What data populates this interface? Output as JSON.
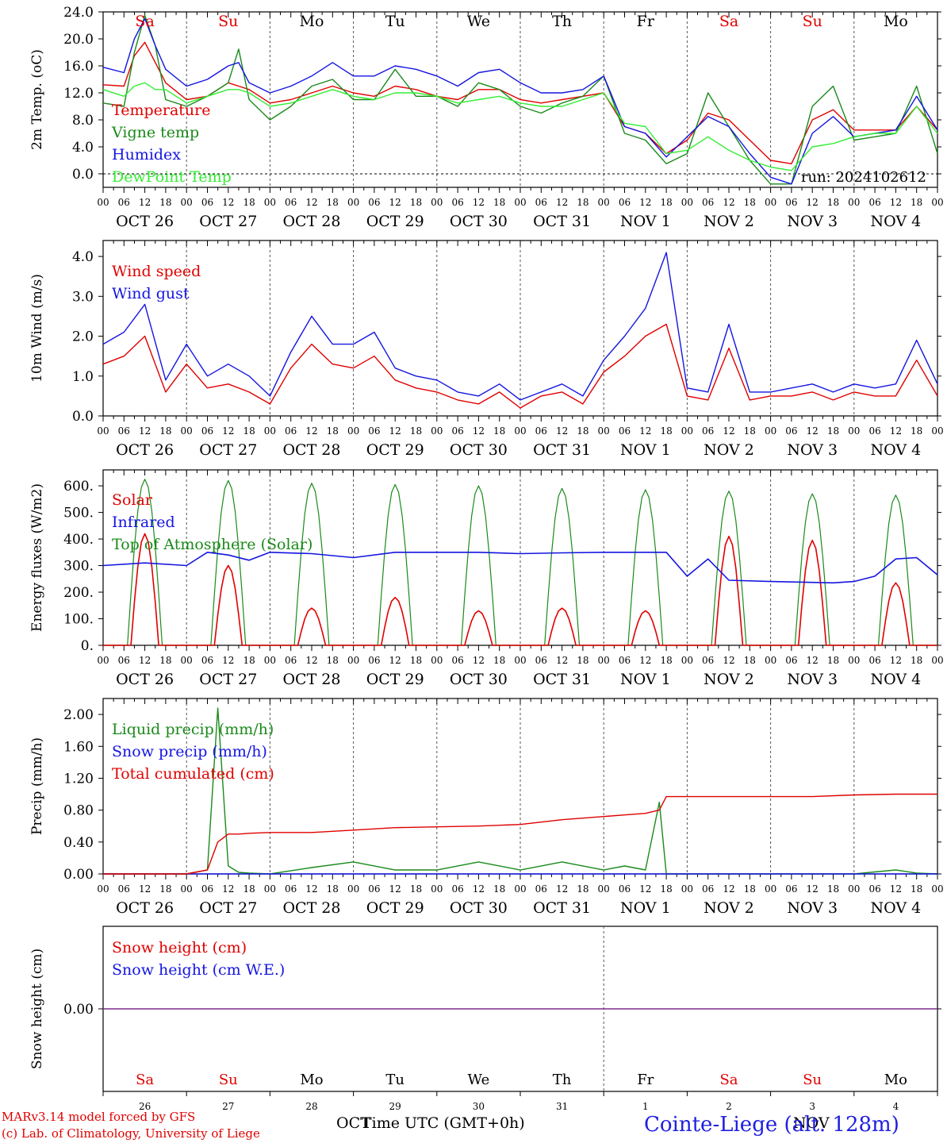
{
  "footer": {
    "model": "MARv3.14 model forced by GFS",
    "lab": "(c) Lab. of Climatology, University of Liege",
    "xlabel": "Time UTC (GMT+0h)",
    "station": "Cointe-Liege (alt. 128m)",
    "oct": "OCT",
    "nov": "NOV"
  },
  "days": {
    "dow": [
      "Sa",
      "Su",
      "Mo",
      "Tu",
      "We",
      "Th",
      "Fr",
      "Sa",
      "Su",
      "Mo"
    ],
    "dow_colors": [
      "#e00000",
      "#e00000",
      "#000000",
      "#000000",
      "#000000",
      "#000000",
      "#000000",
      "#e00000",
      "#e00000",
      "#000000"
    ],
    "date_labels": [
      "OCT 26",
      "OCT 27",
      "OCT 28",
      "OCT 29",
      "OCT 30",
      "OCT 31",
      "NOV  1",
      "NOV  2",
      "NOV  3",
      "NOV  4"
    ],
    "day_numbers": [
      "26",
      "27",
      "28",
      "29",
      "30",
      "31",
      "1",
      "2",
      "3",
      "4"
    ],
    "hour_ticks": [
      "00",
      "06",
      "12",
      "18"
    ],
    "final_tick": "00"
  },
  "colors": {
    "red": "#e00000",
    "green": "#1a8a1a",
    "blue": "#1515e0",
    "lightgreen": "#33ee33",
    "purple": "#7b2d8b",
    "grid": "#555555"
  },
  "chart_data": [
    {
      "type": "line",
      "ylabel": "2m Temp. (oC)",
      "ylim": [
        -2.0,
        24.0
      ],
      "yticks": [
        "0.0",
        "4.0",
        "8.0",
        "12.0",
        "16.0",
        "20.0",
        "24.0"
      ],
      "yticks_values": [
        0,
        4,
        8,
        12,
        16,
        20,
        24
      ],
      "annotation": "run: 2024102612",
      "x_hours": [
        0,
        6,
        9,
        12,
        15,
        18,
        24,
        30,
        36,
        39,
        42,
        48,
        54,
        60,
        66,
        72,
        78,
        84,
        90,
        96,
        102,
        108,
        114,
        120,
        126,
        132,
        138,
        144,
        150,
        156,
        162,
        168,
        174,
        180,
        186,
        192,
        198,
        204,
        210,
        216,
        222,
        228,
        234,
        240
      ],
      "series": [
        {
          "name": "Temperature",
          "color": "red",
          "values": [
            13.2,
            13.0,
            17.5,
            19.5,
            16.5,
            13.5,
            11.0,
            11.5,
            13.5,
            13.0,
            12.5,
            10.5,
            11.0,
            12.0,
            13.0,
            12.0,
            11.5,
            13.0,
            12.5,
            11.5,
            11.0,
            12.5,
            12.5,
            11.0,
            10.5,
            11.0,
            11.5,
            12.0,
            7.0,
            6.0,
            3.0,
            5.0,
            9.0,
            8.0,
            5.0,
            2.0,
            1.5,
            8.0,
            9.5,
            6.5,
            6.5,
            6.5,
            10.0,
            6.5
          ]
        },
        {
          "name": "Vigne temp",
          "color": "green",
          "values": [
            10.5,
            10.0,
            18.0,
            23.5,
            19.0,
            11.0,
            10.0,
            11.5,
            13.5,
            18.5,
            11.0,
            8.0,
            10.0,
            13.0,
            14.0,
            11.0,
            11.0,
            15.5,
            11.5,
            11.5,
            10.0,
            13.5,
            12.5,
            10.0,
            9.0,
            10.5,
            11.5,
            14.5,
            6.0,
            5.0,
            1.5,
            3.0,
            12.0,
            7.0,
            2.0,
            -1.5,
            -1.5,
            10.0,
            13.0,
            5.0,
            5.5,
            6.0,
            13.0,
            3.0
          ]
        },
        {
          "name": "Humidex",
          "color": "blue",
          "values": [
            15.8,
            15.0,
            20.0,
            23.0,
            19.0,
            15.5,
            13.0,
            14.0,
            16.0,
            16.5,
            13.5,
            12.0,
            13.0,
            14.5,
            16.5,
            14.5,
            14.5,
            16.0,
            15.5,
            14.5,
            13.0,
            15.0,
            15.5,
            13.5,
            12.0,
            12.0,
            12.5,
            14.5,
            7.0,
            6.0,
            2.5,
            5.5,
            8.5,
            7.0,
            3.0,
            -0.5,
            -1.5,
            6.0,
            8.5,
            5.5,
            6.0,
            6.5,
            11.5,
            6.5
          ]
        },
        {
          "name": "DewPoint Temp",
          "color": "lightgreen",
          "values": [
            12.5,
            11.5,
            13.0,
            13.5,
            12.5,
            12.5,
            10.5,
            11.5,
            12.5,
            12.5,
            12.0,
            10.0,
            10.5,
            11.5,
            12.5,
            11.5,
            11.0,
            12.0,
            12.0,
            11.5,
            10.5,
            11.0,
            11.5,
            10.5,
            10.0,
            10.0,
            11.0,
            12.0,
            7.5,
            7.0,
            3.0,
            3.5,
            5.5,
            3.5,
            2.0,
            1.0,
            0.5,
            4.0,
            4.5,
            5.5,
            6.0,
            6.0,
            10.0,
            6.0
          ]
        }
      ]
    },
    {
      "type": "line",
      "ylabel": "10m Wind (m/s)",
      "ylim": [
        0.0,
        4.4
      ],
      "yticks": [
        "0.0",
        "1.0",
        "2.0",
        "3.0",
        "4.0"
      ],
      "yticks_values": [
        0,
        1,
        2,
        3,
        4
      ],
      "x_hours": [
        0,
        6,
        12,
        18,
        24,
        30,
        36,
        42,
        48,
        54,
        60,
        66,
        72,
        78,
        84,
        90,
        96,
        102,
        108,
        114,
        120,
        126,
        132,
        138,
        144,
        150,
        156,
        162,
        168,
        174,
        180,
        186,
        192,
        198,
        204,
        210,
        216,
        222,
        228,
        234,
        240
      ],
      "series": [
        {
          "name": "Wind speed",
          "color": "red",
          "values": [
            1.3,
            1.5,
            2.0,
            0.6,
            1.3,
            0.7,
            0.8,
            0.6,
            0.3,
            1.2,
            1.8,
            1.3,
            1.2,
            1.5,
            0.9,
            0.7,
            0.6,
            0.4,
            0.3,
            0.6,
            0.2,
            0.5,
            0.6,
            0.3,
            1.1,
            1.5,
            2.0,
            2.3,
            0.5,
            0.4,
            1.7,
            0.4,
            0.5,
            0.5,
            0.6,
            0.4,
            0.6,
            0.5,
            0.5,
            1.4,
            0.5
          ]
        },
        {
          "name": "Wind gust",
          "color": "blue",
          "values": [
            1.8,
            2.1,
            2.8,
            0.9,
            1.8,
            1.0,
            1.3,
            1.0,
            0.5,
            1.6,
            2.5,
            1.8,
            1.8,
            2.1,
            1.2,
            1.0,
            0.9,
            0.6,
            0.5,
            0.8,
            0.4,
            0.6,
            0.8,
            0.5,
            1.4,
            2.0,
            2.7,
            4.1,
            0.7,
            0.6,
            2.3,
            0.6,
            0.6,
            0.7,
            0.8,
            0.6,
            0.8,
            0.7,
            0.8,
            1.9,
            0.8
          ]
        }
      ]
    },
    {
      "type": "line",
      "ylabel": "Energy fluxes (W/m2)",
      "ylim": [
        0,
        660
      ],
      "yticks": [
        "0.",
        "100.",
        "200.",
        "300.",
        "400.",
        "500.",
        "600."
      ],
      "yticks_values": [
        0,
        100,
        200,
        300,
        400,
        500,
        600
      ],
      "solar_day_peaks": [
        420,
        300,
        140,
        180,
        130,
        140,
        130,
        410,
        395,
        235
      ],
      "toa_day_peaks": [
        625,
        620,
        610,
        605,
        600,
        590,
        585,
        580,
        570,
        565
      ],
      "infrared_hours": [
        0,
        12,
        24,
        30,
        36,
        42,
        48,
        60,
        72,
        84,
        96,
        108,
        120,
        132,
        144,
        156,
        162,
        168,
        174,
        180,
        192,
        210,
        216,
        222,
        228,
        234,
        240
      ],
      "infrared_values": [
        300,
        310,
        300,
        350,
        340,
        320,
        350,
        345,
        330,
        350,
        350,
        350,
        345,
        348,
        350,
        350,
        350,
        260,
        325,
        245,
        240,
        235,
        240,
        260,
        325,
        330,
        265
      ],
      "series": [
        {
          "name": "Solar",
          "color": "red"
        },
        {
          "name": "Infrared",
          "color": "blue"
        },
        {
          "name": "Top of Atmosphere (Solar)",
          "color": "green"
        }
      ]
    },
    {
      "type": "line",
      "ylabel": "Precip (mm/h)",
      "ylim": [
        0.0,
        2.2
      ],
      "yticks": [
        "0.00",
        "0.40",
        "0.80",
        "1.20",
        "1.60",
        "2.00"
      ],
      "yticks_values": [
        0,
        0.4,
        0.8,
        1.2,
        1.6,
        2.0
      ],
      "x_hours": [
        0,
        6,
        24,
        30,
        33,
        36,
        39,
        42,
        48,
        60,
        72,
        84,
        96,
        108,
        120,
        132,
        144,
        150,
        156,
        160,
        162,
        168,
        180,
        192,
        204,
        216,
        228,
        234,
        240
      ],
      "series": [
        {
          "name": "Liquid precip (mm/h)",
          "color": "green",
          "values": [
            0,
            0,
            0,
            0.05,
            2.08,
            0.1,
            0.02,
            0.01,
            0,
            0.08,
            0.15,
            0.05,
            0.05,
            0.15,
            0.05,
            0.15,
            0.05,
            0.1,
            0.05,
            0.9,
            0.0,
            0,
            0,
            0,
            0,
            0,
            0.05,
            0.01,
            0
          ]
        },
        {
          "name": "Snow precip (mm/h)",
          "color": "blue",
          "values": [
            0,
            0,
            0,
            0,
            0,
            0,
            0,
            0,
            0,
            0,
            0,
            0,
            0,
            0,
            0,
            0,
            0,
            0,
            0,
            0,
            0,
            0,
            0,
            0,
            0,
            0,
            0,
            0,
            0
          ]
        },
        {
          "name": "Total cumulated (cm)",
          "color": "red",
          "values": [
            0,
            0,
            0,
            0.05,
            0.4,
            0.5,
            0.5,
            0.51,
            0.52,
            0.52,
            0.55,
            0.58,
            0.59,
            0.6,
            0.62,
            0.68,
            0.72,
            0.74,
            0.76,
            0.8,
            0.97,
            0.97,
            0.97,
            0.97,
            0.97,
            0.99,
            1.0,
            1.0,
            1.0
          ]
        }
      ]
    },
    {
      "type": "line",
      "ylabel": "Snow height (cm)",
      "ylim": [
        -1.0,
        1.0
      ],
      "yticks": [
        "0.00"
      ],
      "yticks_values": [
        0
      ],
      "series": [
        {
          "name": "Snow height (cm)",
          "color": "red",
          "values": [
            0,
            0
          ]
        },
        {
          "name": "Snow height (cm W.E.)",
          "color": "blue",
          "values": [
            0,
            0
          ]
        }
      ]
    }
  ]
}
